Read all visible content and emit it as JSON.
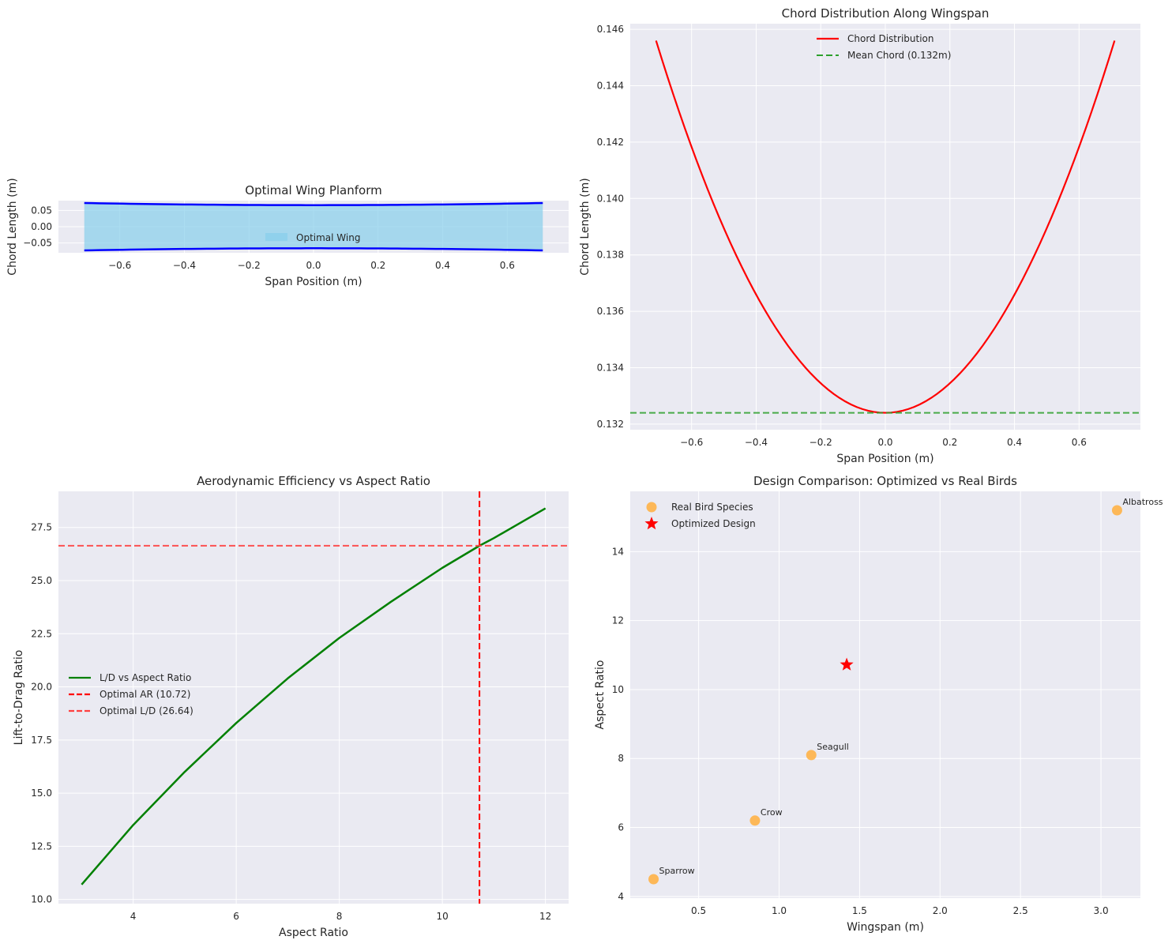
{
  "chart_data": [
    {
      "id": "planform",
      "type": "area",
      "title": "Optimal Wing Planform",
      "xlabel": "Span Position (m)",
      "ylabel": "Chord Length (m)",
      "xlim": [
        -0.79,
        0.79
      ],
      "ylim": [
        -0.08,
        0.08
      ],
      "xticks": [
        -0.6,
        -0.4,
        -0.2,
        0.0,
        0.2,
        0.4,
        0.6
      ],
      "yticks": [
        0.05,
        0.0,
        -0.05
      ],
      "span_range": [
        -0.71,
        0.71
      ],
      "series": [
        {
          "name": "Optimal Wing",
          "color": "#87CEEB",
          "outline_color": "#0000FF"
        }
      ],
      "chord_model": {
        "root_chord": 0.1324,
        "tip_chord": 0.1456
      },
      "legend_location": "lower-center"
    },
    {
      "id": "chord",
      "type": "line",
      "title": "Chord Distribution Along Wingspan",
      "xlabel": "Span Position (m)",
      "ylabel": "Chord Length (m)",
      "xlim": [
        -0.79,
        0.79
      ],
      "ylim": [
        0.1318,
        0.1462
      ],
      "xticks": [
        -0.6,
        -0.4,
        -0.2,
        0.0,
        0.2,
        0.4,
        0.6
      ],
      "yticks": [
        0.132,
        0.134,
        0.136,
        0.138,
        0.14,
        0.142,
        0.144,
        0.146
      ],
      "span_range": [
        -0.71,
        0.71
      ],
      "series": [
        {
          "name": "Chord Distribution",
          "color": "#FF0000"
        },
        {
          "name": "Mean Chord (0.132m)",
          "color": "#2CA02C",
          "value": 0.1324
        }
      ],
      "chord_model": {
        "root_chord": 0.1324,
        "tip_chord": 0.1456
      },
      "legend_location": "upper-center"
    },
    {
      "id": "ld",
      "type": "line",
      "title": "Aerodynamic Efficiency vs Aspect Ratio",
      "xlabel": "Aspect Ratio",
      "ylabel": "Lift-to-Drag Ratio",
      "xlim": [
        2.55,
        12.45
      ],
      "ylim": [
        9.8,
        29.2
      ],
      "xticks": [
        4,
        6,
        8,
        10,
        12
      ],
      "yticks": [
        10.0,
        12.5,
        15.0,
        17.5,
        20.0,
        22.5,
        25.0,
        27.5
      ],
      "x": [
        3,
        4,
        5,
        6,
        7,
        8,
        9,
        10,
        10.72,
        11,
        12
      ],
      "y": [
        10.7,
        13.5,
        16.0,
        18.3,
        20.4,
        22.3,
        24.0,
        25.6,
        26.64,
        27.0,
        28.4
      ],
      "series": [
        {
          "name": "L/D vs Aspect Ratio",
          "color": "#008000"
        },
        {
          "name": "Optimal AR (10.72)",
          "color": "#FF0000",
          "value": 10.72
        },
        {
          "name": "Optimal L/D (26.64)",
          "color": "#FF4040",
          "value": 26.64
        }
      ],
      "legend_location": "center-left"
    },
    {
      "id": "compare",
      "type": "scatter",
      "title": "Design Comparison: Optimized vs Real Birds",
      "xlabel": "Wingspan (m)",
      "ylabel": "Aspect Ratio",
      "xlim": [
        0.075,
        3.245
      ],
      "ylim": [
        3.95,
        15.75
      ],
      "xticks": [
        0.5,
        1.0,
        1.5,
        2.0,
        2.5,
        3.0
      ],
      "yticks": [
        4,
        6,
        8,
        10,
        12,
        14
      ],
      "series": [
        {
          "name": "Real Bird Species",
          "color": "#FFB347",
          "points": [
            {
              "label": "Sparrow",
              "x": 0.22,
              "y": 4.5
            },
            {
              "label": "Crow",
              "x": 0.85,
              "y": 6.2
            },
            {
              "label": "Seagull",
              "x": 1.2,
              "y": 8.1
            },
            {
              "label": "Albatross",
              "x": 3.1,
              "y": 15.2
            }
          ]
        },
        {
          "name": "Optimized Design",
          "color": "#FF0000",
          "points": [
            {
              "x": 1.42,
              "y": 10.72
            }
          ]
        }
      ],
      "legend_location": "upper-left"
    }
  ]
}
